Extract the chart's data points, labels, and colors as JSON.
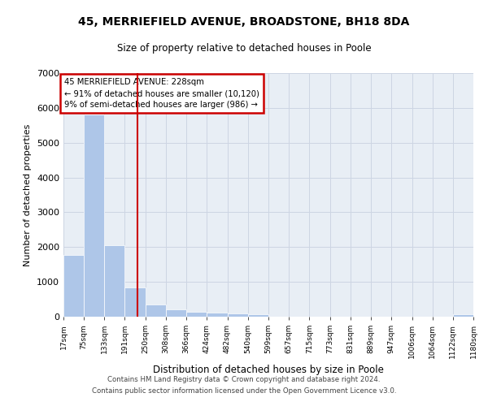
{
  "title_line1": "45, MERRIEFIELD AVENUE, BROADSTONE, BH18 8DA",
  "title_line2": "Size of property relative to detached houses in Poole",
  "xlabel": "Distribution of detached houses by size in Poole",
  "ylabel": "Number of detached properties",
  "footer_line1": "Contains HM Land Registry data © Crown copyright and database right 2024.",
  "footer_line2": "Contains public sector information licensed under the Open Government Licence v3.0.",
  "annotation_line1": "45 MERRIEFIELD AVENUE: 228sqm",
  "annotation_line2": "← 91% of detached houses are smaller (10,120)",
  "annotation_line3": "9% of semi-detached houses are larger (986) →",
  "bar_color": "#aec6e8",
  "grid_color": "#cdd5e3",
  "vline_color": "#cc0000",
  "vline_x": 228,
  "bin_edges": [
    17,
    75,
    133,
    191,
    250,
    308,
    366,
    424,
    482,
    540,
    599,
    657,
    715,
    773,
    831,
    889,
    947,
    1006,
    1064,
    1122,
    1180
  ],
  "bar_heights": [
    1780,
    5800,
    2060,
    830,
    340,
    200,
    135,
    110,
    100,
    75,
    0,
    0,
    0,
    0,
    0,
    0,
    0,
    0,
    0,
    80
  ],
  "ylim": [
    0,
    7000
  ],
  "yticks": [
    0,
    1000,
    2000,
    3000,
    4000,
    5000,
    6000,
    7000
  ],
  "plot_background": "#e8eef5"
}
